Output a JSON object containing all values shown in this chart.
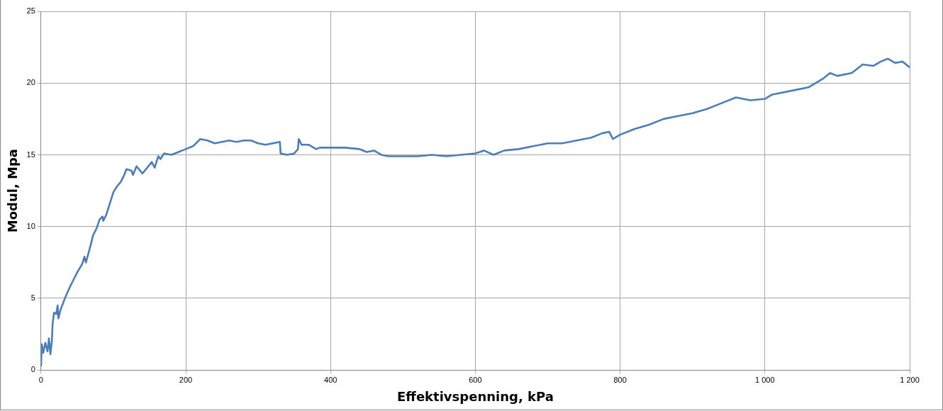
{
  "chart_data": {
    "type": "line",
    "xlabel": "Effektivspenning, kPa",
    "ylabel": "Modul, Mpa",
    "xlim": [
      0,
      1200
    ],
    "xticks": [
      0,
      200,
      400,
      600,
      800,
      {
        "value": 1000,
        "label": "1 000"
      },
      {
        "value": 1200,
        "label": "1 200"
      }
    ],
    "ylim": [
      0,
      25
    ],
    "yticks": [
      0,
      5,
      10,
      15,
      20,
      25
    ],
    "grid": true,
    "legend": false,
    "marker": "none",
    "line_style": "solid",
    "series": [
      {
        "color": "#4a7ebb",
        "x": [
          0,
          1,
          3,
          6,
          9,
          11,
          13,
          15,
          16,
          18,
          21,
          23,
          24,
          27,
          33,
          40,
          50,
          57,
          60,
          62,
          67,
          72,
          77,
          81,
          85,
          86,
          90,
          95,
          100,
          105,
          110,
          115,
          118,
          125,
          127,
          132,
          140,
          145,
          153,
          157,
          162,
          165,
          170,
          180,
          190,
          200,
          210,
          220,
          230,
          240,
          250,
          260,
          270,
          280,
          290,
          300,
          310,
          320,
          330,
          331,
          340,
          350,
          355,
          356,
          360,
          370,
          380,
          385,
          400,
          420,
          440,
          450,
          460,
          470,
          480,
          500,
          520,
          540,
          560,
          580,
          600,
          612,
          625,
          640,
          660,
          680,
          700,
          720,
          740,
          760,
          775,
          785,
          790,
          800,
          820,
          840,
          860,
          880,
          900,
          920,
          940,
          960,
          980,
          1000,
          1010,
          1020,
          1040,
          1060,
          1080,
          1090,
          1100,
          1120,
          1135,
          1150,
          1160,
          1170,
          1180,
          1190,
          1200
        ],
        "values": [
          0.3,
          1.8,
          1.2,
          1.9,
          1.3,
          2.2,
          1.1,
          2.0,
          3.2,
          4.0,
          3.9,
          4.5,
          3.6,
          4.2,
          5.0,
          5.8,
          6.8,
          7.4,
          7.9,
          7.5,
          8.4,
          9.4,
          9.9,
          10.5,
          10.7,
          10.4,
          10.8,
          11.6,
          12.4,
          12.8,
          13.1,
          13.6,
          14.0,
          13.9,
          13.6,
          14.2,
          13.7,
          14.0,
          14.5,
          14.1,
          14.9,
          14.7,
          15.1,
          15.0,
          15.2,
          15.4,
          15.6,
          16.1,
          16.0,
          15.8,
          15.9,
          16.0,
          15.9,
          16.0,
          16.0,
          15.8,
          15.7,
          15.8,
          15.9,
          15.1,
          15.0,
          15.1,
          15.4,
          16.1,
          15.7,
          15.7,
          15.4,
          15.5,
          15.5,
          15.5,
          15.4,
          15.2,
          15.3,
          15.0,
          14.9,
          14.9,
          14.9,
          15.0,
          14.9,
          15.0,
          15.1,
          15.3,
          15.0,
          15.3,
          15.4,
          15.6,
          15.8,
          15.8,
          16.0,
          16.2,
          16.5,
          16.6,
          16.1,
          16.4,
          16.8,
          17.1,
          17.5,
          17.7,
          17.9,
          18.2,
          18.6,
          19.0,
          18.8,
          18.9,
          19.2,
          19.3,
          19.5,
          19.7,
          20.3,
          20.7,
          20.5,
          20.7,
          21.3,
          21.2,
          21.5,
          21.7,
          21.4,
          21.5,
          21.1
        ]
      }
    ]
  }
}
